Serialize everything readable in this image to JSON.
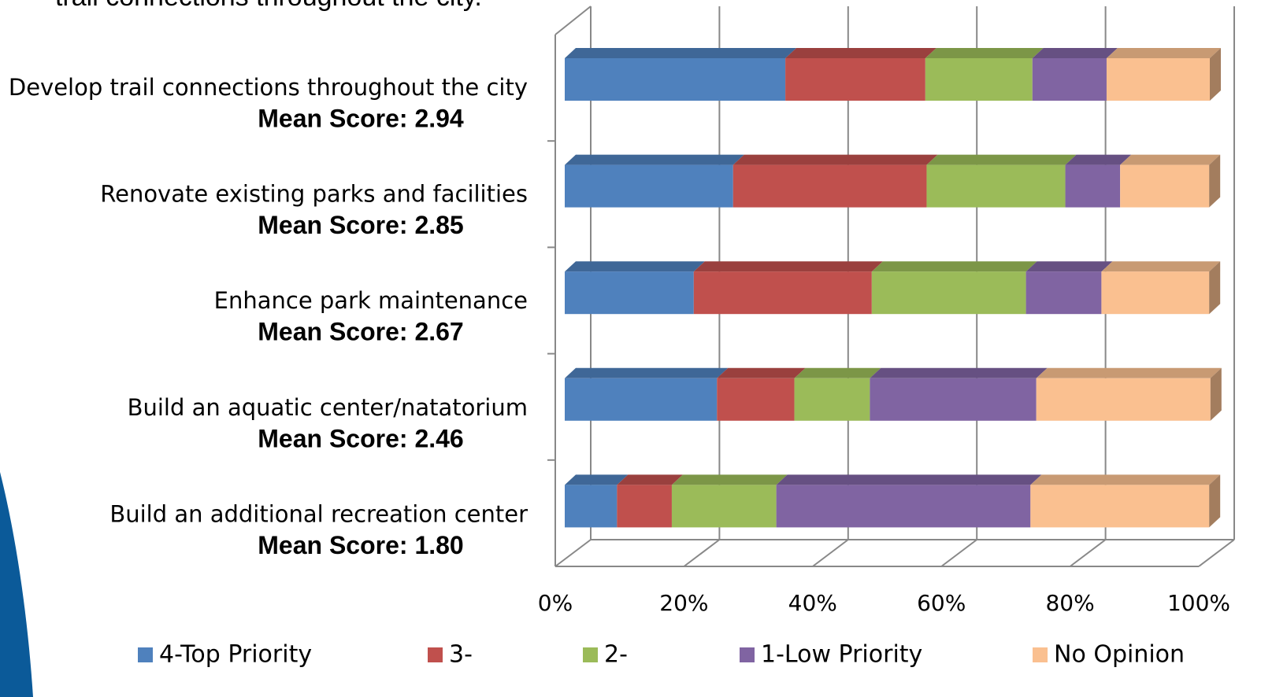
{
  "chart_data": {
    "type": "bar",
    "orientation": "horizontal",
    "stacked": true,
    "three_d": true,
    "title": "trail connections throughout the city.",
    "categories": [
      "Develop trail connections throughout the city",
      "Renovate existing parks and facilities",
      "Enhance park maintenance",
      "Build an aquatic center/natatorium",
      "Build an additional recreation center"
    ],
    "category_notes": [
      "Mean Score: 2.94",
      "Mean Score: 2.85",
      "Mean Score: 2.67",
      "Mean Score: 2.46",
      "Mean Score: 1.80"
    ],
    "series": [
      {
        "name": "4-Top Priority",
        "color": "#4f81bd",
        "values": [
          34.2,
          26.1,
          20.0,
          23.6,
          8.1
        ]
      },
      {
        "name": "3-",
        "color": "#c0504d",
        "values": [
          21.7,
          30.0,
          27.6,
          12.0,
          8.5
        ]
      },
      {
        "name": "2-",
        "color": "#9bbb59",
        "values": [
          16.6,
          21.5,
          23.9,
          11.7,
          16.2
        ]
      },
      {
        "name": "1-Low Priority",
        "color": "#8064a2",
        "values": [
          11.5,
          8.5,
          11.7,
          25.8,
          39.4
        ]
      },
      {
        "name": "No Opinion",
        "color": "#fac090",
        "values": [
          16.0,
          13.8,
          16.7,
          27.0,
          27.7
        ]
      }
    ],
    "xlim": [
      0,
      100
    ],
    "xticks": [
      {
        "value": 0,
        "label": "0%"
      },
      {
        "value": 20,
        "label": "20%"
      },
      {
        "value": 40,
        "label": "40%"
      },
      {
        "value": 60,
        "label": "60%"
      },
      {
        "value": 80,
        "label": "80%"
      },
      {
        "value": 100,
        "label": "100%"
      }
    ],
    "grid": true,
    "legend": "bottom"
  }
}
